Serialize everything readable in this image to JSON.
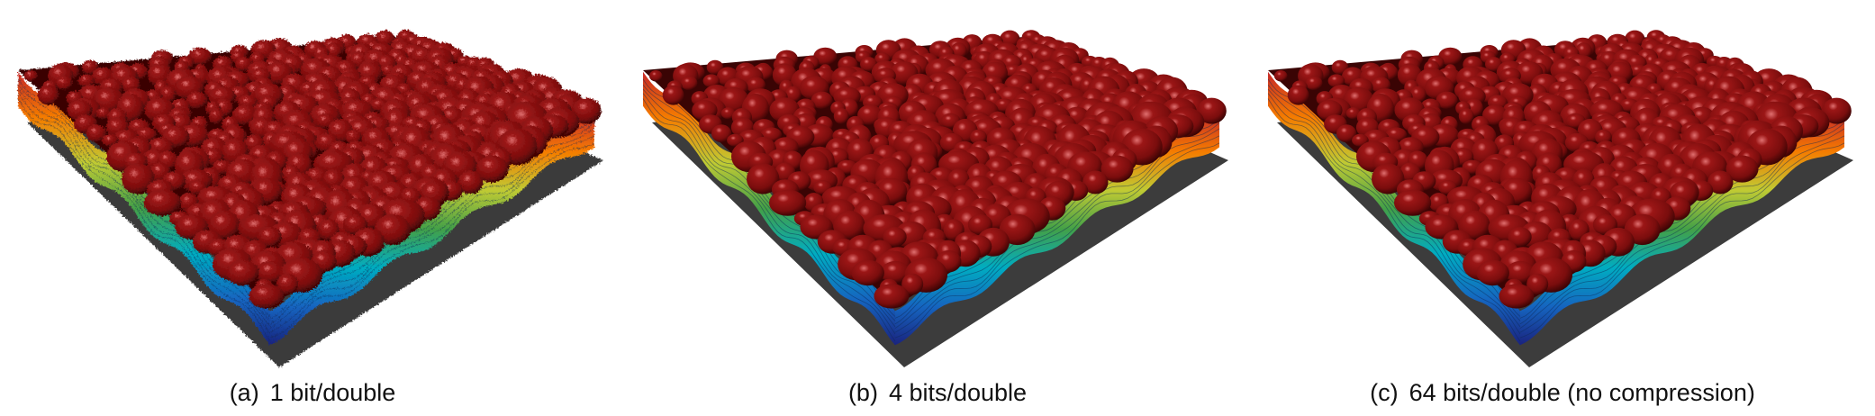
{
  "panels": [
    {
      "tag": "(a)",
      "caption": "1 bit/double",
      "surface": "rough"
    },
    {
      "tag": "(b)",
      "caption": "4 bits/double",
      "surface": "smooth"
    },
    {
      "tag": "(c)",
      "caption": "64 bits/double (no compression)",
      "surface": "smooth"
    }
  ],
  "colors": {
    "blob_base": "#7a0d0d",
    "blob_mid": "#9b1616",
    "blob_highlight": "#e07070",
    "blob_shadow": "#3a0404",
    "edge_bands": [
      "#1a237e",
      "#1565c0",
      "#00acc1",
      "#43a047",
      "#c0ca33",
      "#f57c00",
      "#c62828"
    ],
    "ground_shadow": "#1a1a1a"
  }
}
